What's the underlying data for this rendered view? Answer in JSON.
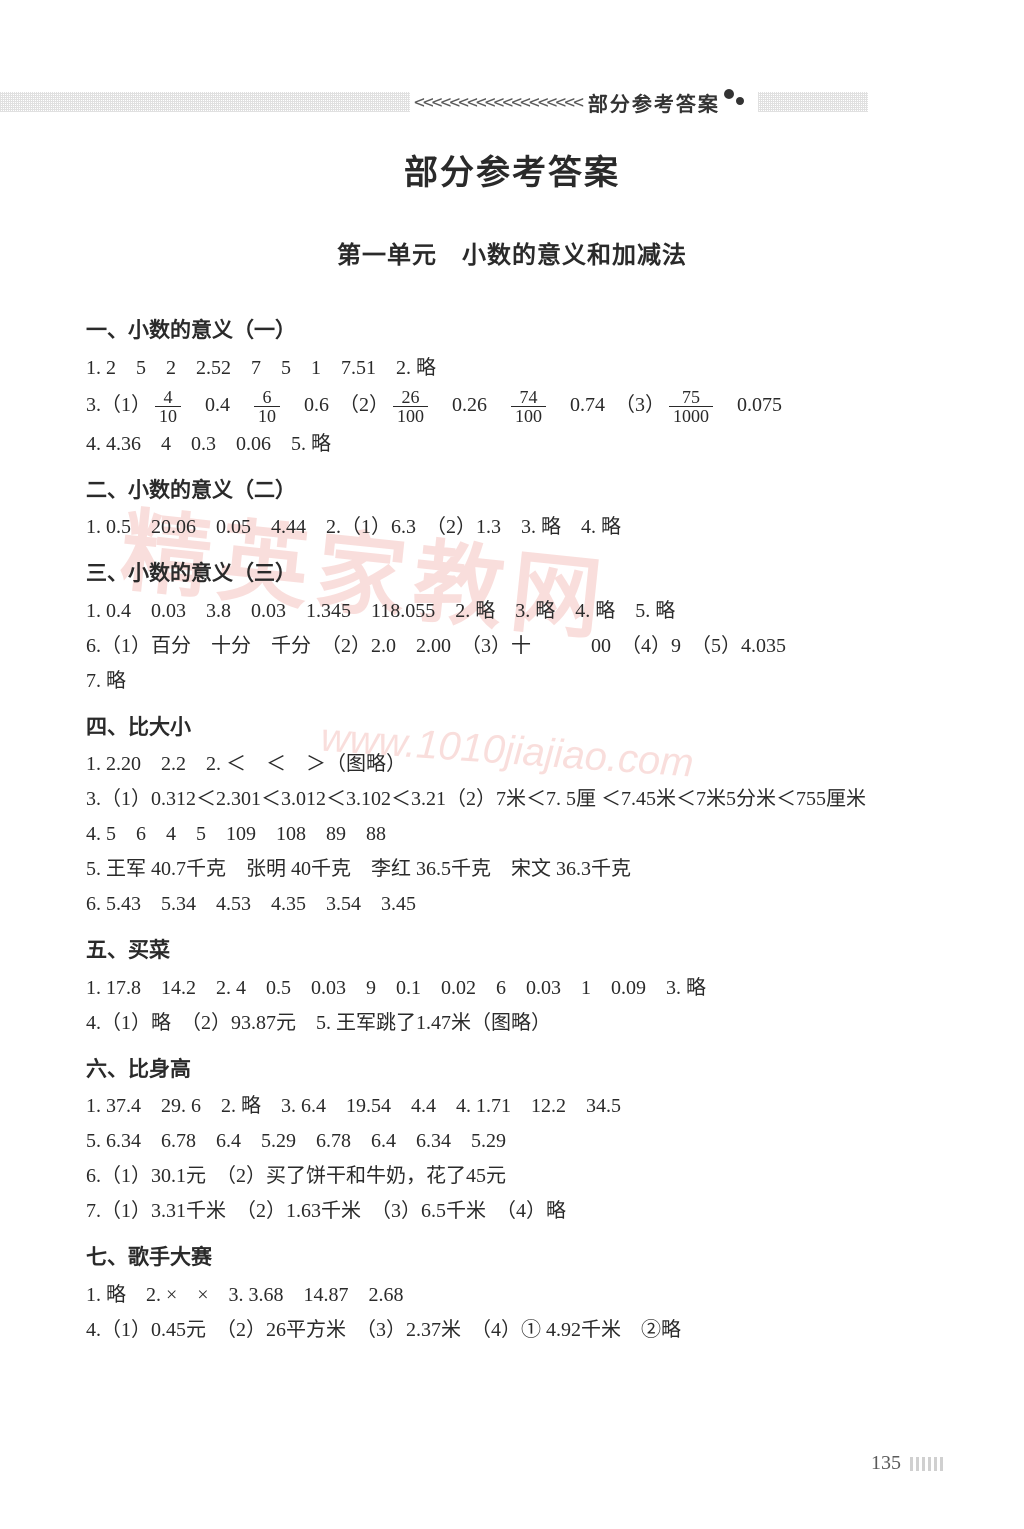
{
  "header": {
    "chevrons": "<<<<<<<<<<<<<<<<<<<",
    "label": "部分参考答案"
  },
  "main_title": "部分参考答案",
  "unit_title": "第一单元　小数的意义和加减法",
  "watermark_main": "精英家教网",
  "watermark_url": "www.1010jiajiao.com",
  "page_number": "135",
  "sections": [
    {
      "title": "一、小数的意义（一）",
      "lines": [
        {
          "type": "plain",
          "text": "1. 2　5　2　2.52　7　5　1　7.51　2. 略"
        },
        {
          "type": "fracline",
          "parts": [
            {
              "t": "3.（1）"
            },
            {
              "frac": {
                "n": "4",
                "d": "10"
              }
            },
            {
              "t": "　0.4　"
            },
            {
              "frac": {
                "n": "6",
                "d": "10"
              }
            },
            {
              "t": "　0.6　（2）"
            },
            {
              "frac": {
                "n": "26",
                "d": "100"
              }
            },
            {
              "t": "　0.26　"
            },
            {
              "frac": {
                "n": "74",
                "d": "100"
              }
            },
            {
              "t": "　0.74　（3）"
            },
            {
              "frac": {
                "n": "75",
                "d": "1000"
              }
            },
            {
              "t": "　0.075"
            }
          ]
        },
        {
          "type": "plain",
          "text": "4. 4.36　4　0.3　0.06　5. 略"
        }
      ]
    },
    {
      "title": "二、小数的意义（二）",
      "lines": [
        {
          "type": "plain",
          "text": "1. 0.5　20.06　0.05　4.44　2.（1）6.3　（2）1.3　3. 略　4. 略"
        }
      ]
    },
    {
      "title": "三、小数的意义（三）",
      "lines": [
        {
          "type": "plain",
          "text": "1. 0.4　0.03　3.8　0.03　1.345　118.055　2. 略　3. 略　4. 略　5. 略"
        },
        {
          "type": "plain",
          "text": "6.（1）百分　十分　千分　（2）2.0　2.00　（3）十　　　00　（4）9　（5）4.035"
        },
        {
          "type": "plain",
          "text": "7. 略"
        }
      ]
    },
    {
      "title": "四、比大小",
      "lines": [
        {
          "type": "plain",
          "text": "1. 2.20　2.2　2. ＜　＜　＞（图略）"
        },
        {
          "type": "plain",
          "text": "3.（1）0.312＜2.301＜3.012＜3.102＜3.21（2）7米＜7. 5厘 ＜7.45米＜7米5分米＜755厘米"
        },
        {
          "type": "plain",
          "text": "4. 5　6　4　5　109　108　89　88"
        },
        {
          "type": "plain",
          "text": "5. 王军 40.7千克　张明 40千克　李红 36.5千克　宋文 36.3千克"
        },
        {
          "type": "plain",
          "text": "6. 5.43　5.34　4.53　4.35　3.54　3.45"
        }
      ]
    },
    {
      "title": "五、买菜",
      "lines": [
        {
          "type": "plain",
          "text": "1. 17.8　14.2　2. 4　0.5　0.03　9　0.1　0.02　6　0.03　1　0.09　3. 略"
        },
        {
          "type": "plain",
          "text": "4.（1）略　（2）93.87元　5. 王军跳了1.47米（图略）"
        }
      ]
    },
    {
      "title": "六、比身高",
      "lines": [
        {
          "type": "plain",
          "text": "1. 37.4　29. 6　2. 略　3. 6.4　19.54　4.4　4. 1.71　12.2　34.5"
        },
        {
          "type": "plain",
          "text": "5. 6.34　6.78　6.4　5.29　6.78　6.4　6.34　5.29"
        },
        {
          "type": "plain",
          "text": "6.（1）30.1元　（2）买了饼干和牛奶，花了45元"
        },
        {
          "type": "plain",
          "text": "7.（1）3.31千米　（2）1.63千米　（3）6.5千米　（4）略"
        }
      ]
    },
    {
      "title": "七、歌手大赛",
      "lines": [
        {
          "type": "plain",
          "text": "1. 略　2. ×　×　3. 3.68　14.87　2.68"
        },
        {
          "type": "plain",
          "text": "4.（1）0.45元　（2）26平方米　（3）2.37米　（4）① 4.92千米　②略"
        }
      ]
    }
  ]
}
